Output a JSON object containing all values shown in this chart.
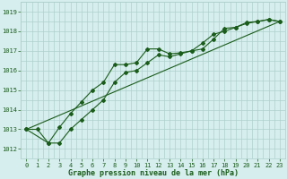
{
  "title": "Graphe pression niveau de la mer (hPa)",
  "background_color": "#d6eeee",
  "grid_color": "#aed0cc",
  "line_color": "#1a5c1a",
  "xlim": [
    -0.5,
    23.5
  ],
  "ylim": [
    1011.5,
    1019.5
  ],
  "yticks": [
    1012,
    1013,
    1014,
    1015,
    1016,
    1017,
    1018,
    1019
  ],
  "xticks": [
    0,
    1,
    2,
    3,
    4,
    5,
    6,
    7,
    8,
    9,
    10,
    11,
    12,
    13,
    14,
    15,
    16,
    17,
    18,
    19,
    20,
    21,
    22,
    23
  ],
  "series1_x": [
    0,
    1,
    2,
    3,
    4,
    5,
    6,
    7,
    8,
    9,
    10,
    11,
    12,
    13,
    14,
    15,
    16,
    17,
    18,
    19,
    20,
    21,
    22,
    23
  ],
  "series1_y": [
    1013.0,
    1013.0,
    1012.3,
    1013.1,
    1013.8,
    1014.4,
    1015.0,
    1015.4,
    1016.3,
    1016.3,
    1016.4,
    1017.1,
    1017.1,
    1016.85,
    1016.9,
    1017.0,
    1017.1,
    1017.6,
    1018.15,
    1018.2,
    1018.45,
    1018.5,
    1018.6,
    1018.5
  ],
  "series2_x": [
    0,
    2,
    3,
    4,
    5,
    6,
    7,
    8,
    9,
    10,
    11,
    12,
    13,
    14,
    15,
    16,
    17,
    18,
    19,
    20,
    21,
    22,
    23
  ],
  "series2_y": [
    1013.0,
    1012.3,
    1012.3,
    1013.0,
    1013.5,
    1014.0,
    1014.5,
    1015.4,
    1015.9,
    1016.0,
    1016.4,
    1016.8,
    1016.7,
    1016.85,
    1017.0,
    1017.4,
    1017.85,
    1018.0,
    1018.2,
    1018.4,
    1018.5,
    1018.6,
    1018.5
  ],
  "trend_x": [
    0,
    23
  ],
  "trend_y": [
    1013.0,
    1018.5
  ]
}
